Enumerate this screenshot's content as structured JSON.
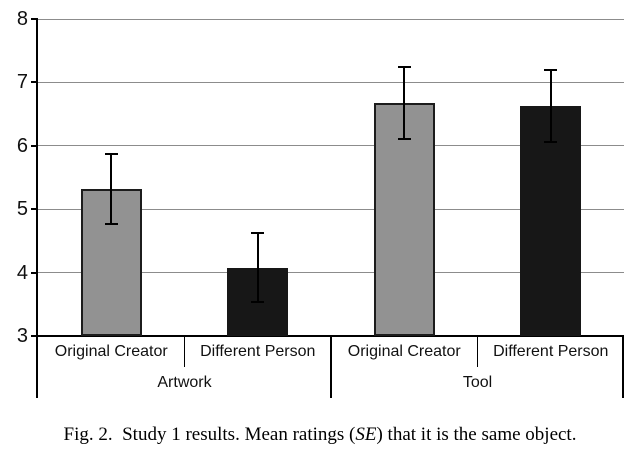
{
  "figure": {
    "caption": {
      "part1": "Fig. 2.  Study 1 results. Mean ratings (",
      "emphasis": "SE",
      "part2": ") that it is the same object."
    }
  },
  "chart_data": {
    "type": "bar",
    "title": "",
    "xlabel": "",
    "ylabel": "",
    "ylim": [
      3,
      8
    ],
    "yticks": [
      3,
      4,
      5,
      6,
      7,
      8
    ],
    "grid": true,
    "legend": false,
    "error_bars": "SE",
    "groups": [
      {
        "label": "Artwork",
        "bars": [
          {
            "category": "Original Creator",
            "value": 5.32,
            "se": 0.55,
            "fill": "gray"
          },
          {
            "category": "Different Person",
            "value": 4.08,
            "se": 0.54,
            "fill": "black"
          }
        ]
      },
      {
        "label": "Tool",
        "bars": [
          {
            "category": "Original Creator",
            "value": 6.67,
            "se": 0.57,
            "fill": "gray"
          },
          {
            "category": "Different Person",
            "value": 6.63,
            "se": 0.57,
            "fill": "black"
          }
        ]
      }
    ],
    "colors": {
      "gray_fill": "#929292",
      "black_fill": "#171717",
      "bar_border": "#1c1c1c",
      "gridline": "#8c8c8c",
      "axis": "#000000"
    }
  }
}
